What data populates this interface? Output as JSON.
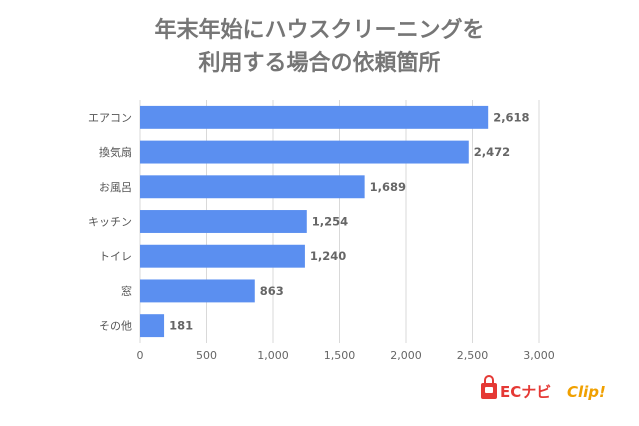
{
  "chart_data": {
    "type": "bar",
    "orientation": "horizontal",
    "title_lines": [
      "年末年始にハウスクリーニングを",
      "利用する場合の依頼箇所"
    ],
    "categories": [
      "エアコン",
      "換気扇",
      "お風呂",
      "キッチン",
      "トイレ",
      "窓",
      "その他"
    ],
    "values": [
      2618,
      2472,
      1689,
      1254,
      1240,
      863,
      181
    ],
    "value_labels": [
      "2,618",
      "2,472",
      "1,689",
      "1,254",
      "1,240",
      "863",
      "181"
    ],
    "x_ticks": [
      "0",
      "500",
      "1,000",
      "1,500",
      "2,000",
      "2,500",
      "3,000"
    ],
    "xlim": [
      0,
      3000
    ],
    "grid": "vertical",
    "bar_color": "#5b8ff0"
  },
  "logo": {
    "brand": "ECナビ",
    "suffix": "Clip!",
    "icon": "shopping-bag-icon",
    "colors": {
      "ec": "#e53935",
      "clip": "#f0a000"
    }
  }
}
